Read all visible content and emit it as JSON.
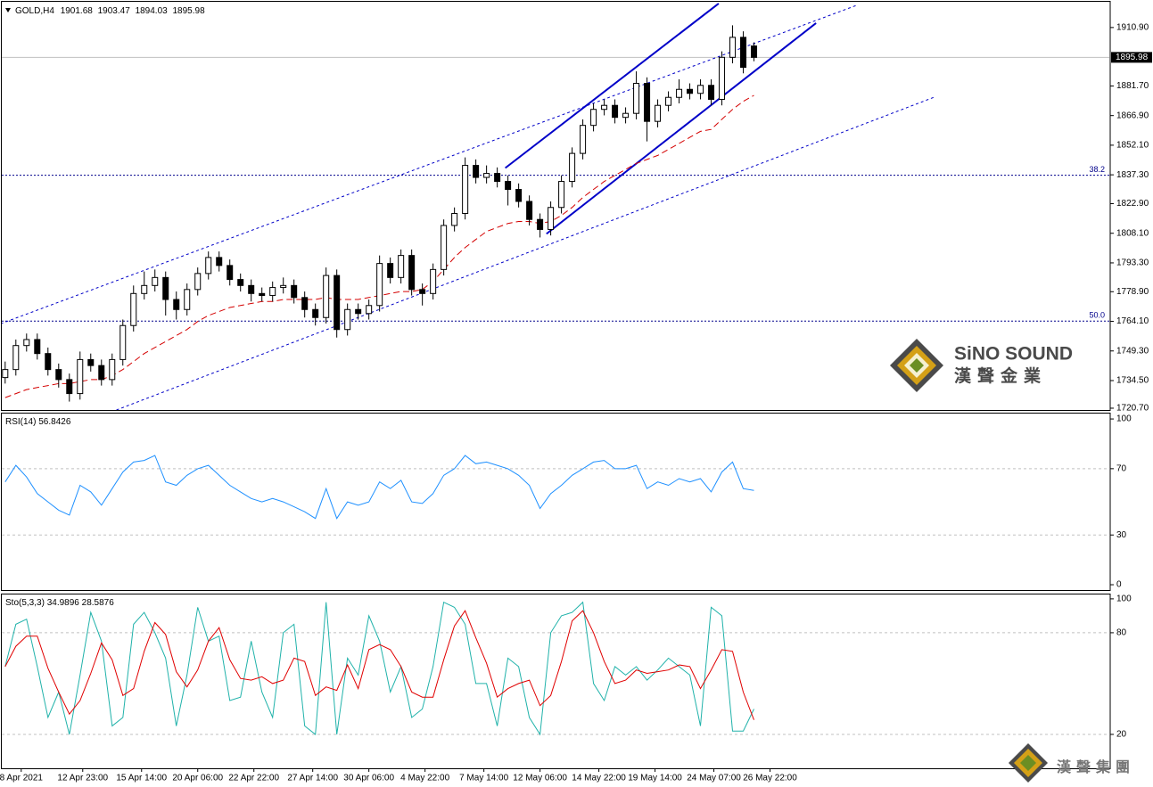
{
  "chart_data": [
    {
      "type": "candlestick",
      "title": "GOLD,H4",
      "x": [
        0,
        1,
        2,
        3,
        4,
        5,
        6,
        7,
        8,
        9,
        10,
        11,
        12,
        13,
        14,
        15,
        16,
        17,
        18,
        19,
        20,
        21,
        22,
        23,
        24,
        25,
        26,
        27,
        28,
        29,
        30,
        31,
        32,
        33,
        34,
        35,
        36,
        37,
        38,
        39,
        40,
        41,
        42,
        43,
        44,
        45,
        46,
        47,
        48,
        49,
        50,
        51,
        52,
        53,
        54,
        55,
        56,
        57,
        58,
        59,
        60,
        61,
        62,
        63,
        64,
        65,
        66,
        67,
        68,
        69,
        70
      ],
      "open": [
        1736,
        1740,
        1752,
        1755,
        1748,
        1740,
        1735,
        1728,
        1745,
        1742,
        1735,
        1745,
        1762,
        1778,
        1782,
        1786,
        1775,
        1770,
        1780,
        1788,
        1796,
        1792,
        1785,
        1782,
        1778,
        1777,
        1781,
        1782,
        1776,
        1770,
        1766,
        1787,
        1760,
        1770,
        1768,
        1772,
        1793,
        1786,
        1797,
        1780,
        1778,
        1790,
        1812,
        1818,
        1842,
        1836,
        1838,
        1834,
        1830,
        1824,
        1815,
        1810,
        1821,
        1834,
        1848,
        1862,
        1870,
        1872,
        1866,
        1868,
        1883,
        1864,
        1872,
        1876,
        1880,
        1878,
        1882,
        1875,
        1896,
        1906,
        1901.68
      ],
      "high": [
        1744,
        1755,
        1758,
        1758,
        1751,
        1743,
        1738,
        1749,
        1748,
        1745,
        1748,
        1765,
        1782,
        1789,
        1790,
        1789,
        1779,
        1783,
        1791,
        1799,
        1799,
        1795,
        1788,
        1785,
        1781,
        1784,
        1786,
        1785,
        1779,
        1773,
        1791,
        1790,
        1773,
        1773,
        1775,
        1797,
        1796,
        1800,
        1800,
        1783,
        1793,
        1815,
        1821,
        1846,
        1845,
        1842,
        1841,
        1837,
        1833,
        1827,
        1818,
        1824,
        1837,
        1851,
        1865,
        1873,
        1875,
        1875,
        1871,
        1889,
        1886,
        1875,
        1879,
        1885,
        1883,
        1885,
        1885,
        1899,
        1912,
        1909,
        1903.47
      ],
      "low": [
        1733,
        1737,
        1749,
        1745,
        1737,
        1731,
        1724,
        1725,
        1739,
        1732,
        1732,
        1742,
        1759,
        1775,
        1779,
        1767,
        1765,
        1767,
        1777,
        1785,
        1789,
        1782,
        1779,
        1774,
        1774,
        1774,
        1778,
        1773,
        1766,
        1762,
        1763,
        1756,
        1757,
        1765,
        1765,
        1769,
        1783,
        1783,
        1777,
        1772,
        1775,
        1787,
        1809,
        1815,
        1833,
        1833,
        1831,
        1822,
        1821,
        1812,
        1806,
        1807,
        1818,
        1831,
        1845,
        1859,
        1867,
        1863,
        1863,
        1865,
        1854,
        1861,
        1869,
        1873,
        1875,
        1875,
        1872,
        1872,
        1893,
        1888,
        1894.03
      ],
      "close": [
        1740,
        1752,
        1755,
        1748,
        1740,
        1735,
        1728,
        1745,
        1742,
        1735,
        1745,
        1762,
        1778,
        1782,
        1786,
        1775,
        1770,
        1780,
        1788,
        1796,
        1792,
        1785,
        1782,
        1778,
        1777,
        1781,
        1782,
        1776,
        1770,
        1766,
        1787,
        1760,
        1770,
        1768,
        1772,
        1793,
        1786,
        1797,
        1780,
        1778,
        1790,
        1812,
        1818,
        1842,
        1836,
        1838,
        1834,
        1830,
        1824,
        1815,
        1810,
        1821,
        1834,
        1848,
        1862,
        1870,
        1872,
        1866,
        1868,
        1883,
        1864,
        1872,
        1876,
        1880,
        1878,
        1882,
        1875,
        1896,
        1906,
        1891,
        1895.98
      ],
      "up_color": "#ffffff",
      "down_color": "#000000",
      "moving_average": {
        "color": "#d40000",
        "values": [
          1726,
          1728,
          1730,
          1731,
          1732,
          1733,
          1733,
          1734,
          1735,
          1735,
          1737,
          1740,
          1744,
          1748,
          1751,
          1754,
          1757,
          1760,
          1764,
          1767,
          1769,
          1771,
          1772,
          1773,
          1774,
          1774,
          1775,
          1775,
          1775,
          1775,
          1776,
          1775,
          1775,
          1775,
          1776,
          1777,
          1778,
          1779,
          1779,
          1780,
          1784,
          1790,
          1796,
          1801,
          1805,
          1809,
          1811,
          1813,
          1814,
          1814,
          1813,
          1814,
          1817,
          1821,
          1826,
          1830,
          1834,
          1837,
          1840,
          1843,
          1845,
          1847,
          1850,
          1853,
          1856,
          1859,
          1860,
          1865,
          1870,
          1874,
          1877
        ]
      },
      "trend_lines": [
        {
          "style": "solid",
          "color": "#0000c8",
          "x": [
            46.75,
            66.7
          ],
          "y": [
            1840.7,
            1922.9
          ]
        },
        {
          "style": "solid",
          "color": "#0000c8",
          "x": [
            50.6,
            75.8
          ],
          "y": [
            1807.8,
            1913.1
          ]
        },
        {
          "style": "dotted",
          "color": "#0000c8",
          "x": [
            -0.42,
            79.6
          ],
          "y": [
            1762.9,
            1922
          ]
        },
        {
          "style": "dotted",
          "color": "#0000c8",
          "x": [
            10.4,
            86.9
          ],
          "y": [
            1719.8,
            1876.2
          ]
        }
      ],
      "fib_levels": [
        {
          "label": "38.2",
          "price": 1837.1
        },
        {
          "label": "50.0",
          "price": 1764.2
        }
      ],
      "xlim": [
        -0.4,
        103.3
      ],
      "ylim": [
        1719.8,
        1924.2
      ],
      "yticks": [
        {
          "value": 1910.9,
          "label": "1910.90"
        },
        {
          "value": 1881.7,
          "label": "1881.70"
        },
        {
          "value": 1866.9,
          "label": "1866.90"
        },
        {
          "value": 1852.1,
          "label": "1852.10"
        },
        {
          "value": 1837.3,
          "label": "1837.30"
        },
        {
          "value": 1822.9,
          "label": "1822.90"
        },
        {
          "value": 1808.1,
          "label": "1808.10"
        },
        {
          "value": 1793.3,
          "label": "1793.30"
        },
        {
          "value": 1778.9,
          "label": "1778.90"
        },
        {
          "value": 1764.1,
          "label": "1764.10"
        },
        {
          "value": 1749.3,
          "label": "1749.30"
        },
        {
          "value": 1734.5,
          "label": "1734.50"
        },
        {
          "value": 1720.7,
          "label": "1720.70"
        }
      ]
    },
    {
      "type": "line",
      "title": "RSI(14)",
      "x": [
        0,
        1,
        2,
        3,
        4,
        5,
        6,
        7,
        8,
        9,
        10,
        11,
        12,
        13,
        14,
        15,
        16,
        17,
        18,
        19,
        20,
        21,
        22,
        23,
        24,
        25,
        26,
        27,
        28,
        29,
        30,
        31,
        32,
        33,
        34,
        35,
        36,
        37,
        38,
        39,
        40,
        41,
        42,
        43,
        44,
        45,
        46,
        47,
        48,
        49,
        50,
        51,
        52,
        53,
        54,
        55,
        56,
        57,
        58,
        59,
        60,
        61,
        62,
        63,
        64,
        65,
        66,
        67,
        68,
        69,
        70
      ],
      "series": [
        {
          "color": "#1e90ff",
          "values": [
            62,
            72,
            65,
            55,
            50,
            45,
            42,
            60,
            56,
            48,
            58,
            68,
            74,
            75,
            78,
            62,
            60,
            66,
            70,
            72,
            66,
            60,
            56,
            52,
            50,
            52,
            50,
            47,
            44,
            40,
            58,
            40,
            50,
            48,
            50,
            62,
            58,
            63,
            50,
            49,
            55,
            66,
            70,
            78,
            73,
            74,
            72,
            70,
            66,
            60,
            46,
            55,
            60,
            66,
            70,
            74,
            75,
            70,
            70,
            72,
            58,
            62,
            60,
            64,
            62,
            64,
            56,
            68,
            74,
            58,
            56.8426
          ]
        }
      ],
      "levels": [
        70,
        30
      ],
      "xlim": [
        -0.4,
        103.3
      ],
      "ylim": [
        -3.2,
        103.8
      ],
      "yticks": [
        100,
        70,
        30,
        0
      ]
    },
    {
      "type": "line",
      "title": "Sto(5,3,3)",
      "x": [
        0,
        1,
        2,
        3,
        4,
        5,
        6,
        7,
        8,
        9,
        10,
        11,
        12,
        13,
        14,
        15,
        16,
        17,
        18,
        19,
        20,
        21,
        22,
        23,
        24,
        25,
        26,
        27,
        28,
        29,
        30,
        31,
        32,
        33,
        34,
        35,
        36,
        37,
        38,
        39,
        40,
        41,
        42,
        43,
        44,
        45,
        46,
        47,
        48,
        49,
        50,
        51,
        52,
        53,
        54,
        55,
        56,
        57,
        58,
        59,
        60,
        61,
        62,
        63,
        64,
        65,
        66,
        67,
        68,
        69,
        70
      ],
      "series": [
        {
          "color": "#20b2aa",
          "values": [
            60,
            85,
            88,
            60,
            30,
            45,
            20,
            55,
            92,
            75,
            25,
            30,
            85,
            92,
            80,
            65,
            25,
            55,
            95,
            75,
            78,
            40,
            42,
            75,
            45,
            30,
            80,
            85,
            25,
            20,
            98,
            20,
            65,
            55,
            90,
            75,
            45,
            60,
            30,
            35,
            60,
            98,
            95,
            85,
            50,
            50,
            25,
            65,
            60,
            30,
            20,
            80,
            90,
            92,
            98,
            50,
            40,
            60,
            55,
            60,
            52,
            58,
            65,
            60,
            55,
            25,
            95,
            90,
            22,
            22,
            34.9896
          ]
        },
        {
          "color": "#e00000",
          "values": [
            60,
            72,
            78,
            78,
            59,
            45,
            32,
            40,
            56,
            74,
            64,
            43,
            47,
            69,
            86,
            79,
            57,
            48,
            58,
            75,
            83,
            64,
            53,
            52,
            54,
            50,
            52,
            65,
            63,
            43,
            48,
            46,
            61,
            47,
            70,
            73,
            70,
            60,
            45,
            42,
            42,
            64,
            84,
            93,
            77,
            62,
            42,
            47,
            50,
            52,
            37,
            43,
            63,
            87,
            93,
            80,
            63,
            50,
            52,
            58,
            56,
            57,
            58,
            61,
            60,
            47,
            58,
            70,
            69,
            45,
            28.5876
          ]
        }
      ],
      "levels": [
        80,
        20
      ],
      "xlim": [
        -0.4,
        103.3
      ],
      "ylim": [
        0,
        103.1
      ],
      "yticks": [
        100,
        80,
        20
      ],
      "xticks": [
        {
          "value": 1.5,
          "label": "8 Apr 2021"
        },
        {
          "value": 7.25,
          "label": "12 Apr 23:00"
        },
        {
          "value": 12.75,
          "label": "15 Apr 14:00"
        },
        {
          "value": 18,
          "label": "20 Apr 06:00"
        },
        {
          "value": 23.25,
          "label": "22 Apr 22:00"
        },
        {
          "value": 28.75,
          "label": "27 Apr 14:00"
        },
        {
          "value": 34,
          "label": "30 Apr 06:00"
        },
        {
          "value": 39.25,
          "label": "4 May 22:00"
        },
        {
          "value": 44.75,
          "label": "7 May 14:00"
        },
        {
          "value": 50,
          "label": "12 May 06:00"
        },
        {
          "value": 55.5,
          "label": "14 May 22:00"
        },
        {
          "value": 60.75,
          "label": "19 May 14:00"
        },
        {
          "value": 66.25,
          "label": "24 May 07:00"
        },
        {
          "value": 71.5,
          "label": "26 May 22:00"
        }
      ]
    }
  ],
  "watermark": {
    "brand": "SiNO SOUND",
    "brand_cn": "漢聲金業",
    "corner_cn": "漢聲集團"
  }
}
